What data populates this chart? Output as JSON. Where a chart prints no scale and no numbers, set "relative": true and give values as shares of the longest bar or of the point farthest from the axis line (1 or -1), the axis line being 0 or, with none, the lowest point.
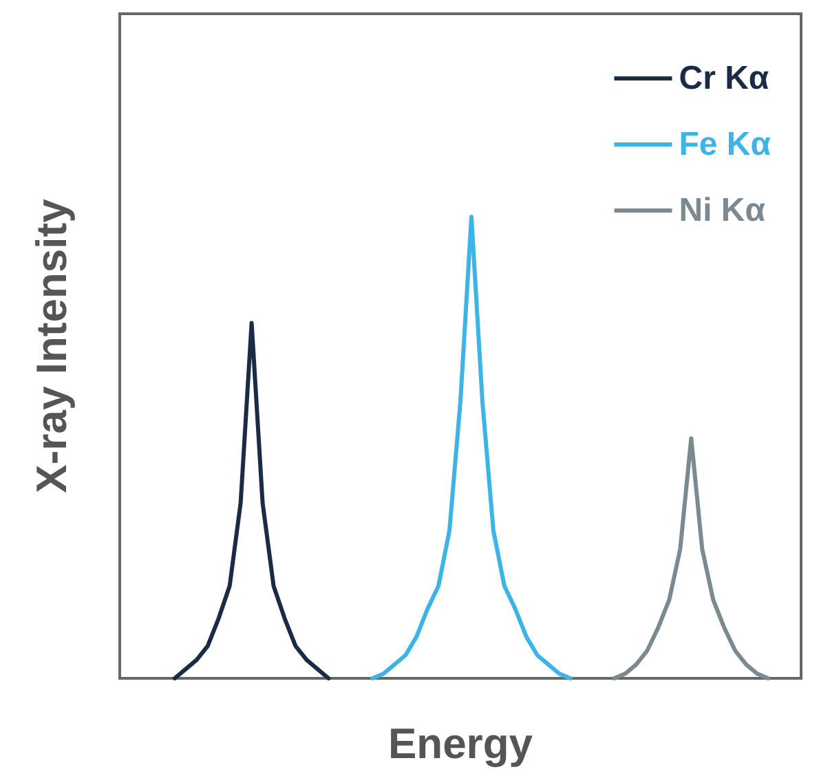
{
  "chart_data": {
    "type": "line",
    "relative": true,
    "xlabel": "Energy",
    "ylabel": "X-ray Intensity",
    "legend": "top right",
    "grid": false,
    "line_style": "solid",
    "categories": [
      null,
      null,
      null,
      null,
      null,
      null,
      null,
      null,
      null,
      null,
      null,
      null,
      null,
      null,
      null,
      null,
      null,
      null,
      null,
      null,
      null,
      null,
      null,
      null,
      null,
      null,
      null,
      null,
      null,
      null,
      null,
      null,
      null,
      null,
      null,
      null,
      null,
      null,
      null,
      null,
      null,
      null,
      null,
      null,
      null,
      null,
      null,
      null,
      null,
      null,
      null,
      null,
      null,
      null,
      null,
      null,
      null,
      null,
      null,
      null,
      null,
      null,
      null
    ],
    "series": [
      {
        "name": "Cr Kα",
        "color": "#1a2b45",
        "values": [
          null,
          null,
          null,
          null,
          null,
          0,
          0.02,
          0.04,
          0.07,
          0.13,
          0.2,
          0.38,
          0.77,
          0.38,
          0.2,
          0.13,
          0.07,
          0.04,
          0.02,
          0,
          null,
          null,
          null,
          null,
          null,
          null,
          null,
          null,
          null,
          null,
          null,
          null,
          null,
          null,
          null,
          null,
          null,
          null,
          null,
          null,
          null,
          null,
          null,
          null,
          null,
          null,
          null,
          null,
          null,
          null,
          null,
          null,
          null,
          null,
          null,
          null,
          null,
          null,
          null,
          null,
          null,
          null,
          null
        ]
      },
      {
        "name": "Fe Kα",
        "color": "#3cb4e5",
        "values": [
          null,
          null,
          null,
          null,
          null,
          null,
          null,
          null,
          null,
          null,
          null,
          null,
          null,
          null,
          null,
          null,
          null,
          null,
          null,
          null,
          null,
          null,
          null,
          0,
          0.01,
          0.03,
          0.05,
          0.09,
          0.15,
          0.2,
          0.32,
          0.6,
          1,
          0.6,
          0.32,
          0.2,
          0.15,
          0.09,
          0.05,
          0.03,
          0.01,
          0,
          null,
          null,
          null,
          null,
          null,
          null,
          null,
          null,
          null,
          null,
          null,
          null,
          null,
          null,
          null,
          null,
          null,
          null,
          null,
          null,
          null
        ]
      },
      {
        "name": "Ni Kα",
        "color": "#7a8a90",
        "values": [
          null,
          null,
          null,
          null,
          null,
          null,
          null,
          null,
          null,
          null,
          null,
          null,
          null,
          null,
          null,
          null,
          null,
          null,
          null,
          null,
          null,
          null,
          null,
          null,
          null,
          null,
          null,
          null,
          null,
          null,
          null,
          null,
          null,
          null,
          null,
          null,
          null,
          null,
          null,
          null,
          null,
          null,
          null,
          null,
          null,
          0,
          0.01,
          0.03,
          0.06,
          0.11,
          0.17,
          0.28,
          0.52,
          0.28,
          0.17,
          0.11,
          0.06,
          0.03,
          0.01,
          0,
          null,
          null,
          null
        ]
      }
    ]
  }
}
